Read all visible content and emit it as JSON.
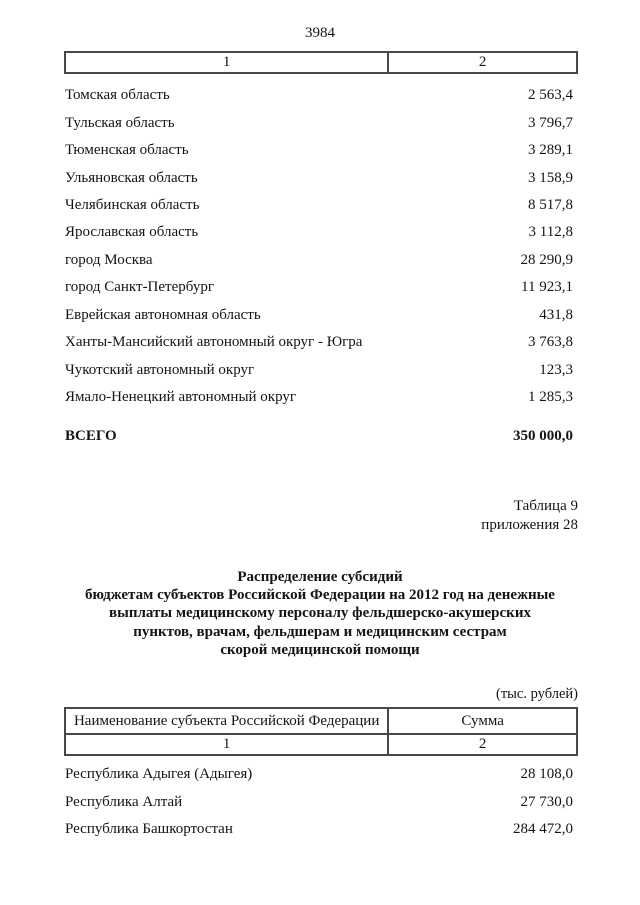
{
  "page_number": "3984",
  "continuation_table": {
    "column_numbers": [
      "1",
      "2"
    ],
    "rows": [
      {
        "name": "Томская область",
        "value": "2 563,4"
      },
      {
        "name": "Тульская область",
        "value": "3 796,7"
      },
      {
        "name": "Тюменская область",
        "value": "3 289,1"
      },
      {
        "name": "Ульяновская область",
        "value": "3 158,9"
      },
      {
        "name": "Челябинская область",
        "value": "8 517,8"
      },
      {
        "name": "Ярославская область",
        "value": "3 112,8"
      },
      {
        "name": "город Москва",
        "value": "28 290,9"
      },
      {
        "name": "город Санкт-Петербург",
        "value": "11 923,1"
      },
      {
        "name": "Еврейская автономная область",
        "value": "431,8"
      },
      {
        "name": "Ханты-Мансийский автономный округ - Югра",
        "value": "3 763,8"
      },
      {
        "name": "Чукотский автономный округ",
        "value": "123,3"
      },
      {
        "name": "Ямало-Ненецкий автономный округ",
        "value": "1 285,3"
      }
    ],
    "total": {
      "label": "ВСЕГО",
      "value": "350 000,0"
    }
  },
  "caption": {
    "lines": [
      "Таблица 9",
      "приложения 28"
    ]
  },
  "title": {
    "lines": [
      "Распределение субсидий",
      "бюджетам субъектов Российской  Федерации на 2012 год на денежные",
      "выплаты медицинскому персоналу фельдшерско-акушерских",
      "пунктов, врачам, фельдшерам и медицинским сестрам",
      "скорой медицинской помощи"
    ]
  },
  "units_note": "(тыс. рублей)",
  "subsidy_table": {
    "headers": [
      "Наименование субъекта Российской Федерации",
      "Сумма"
    ],
    "column_numbers": [
      "1",
      "2"
    ],
    "rows": [
      {
        "name": "Республика Адыгея (Адыгея)",
        "value": "28 108,0"
      },
      {
        "name": "Республика Алтай",
        "value": "27 730,0"
      },
      {
        "name": "Республика Башкортостан",
        "value": "284 472,0"
      }
    ]
  }
}
